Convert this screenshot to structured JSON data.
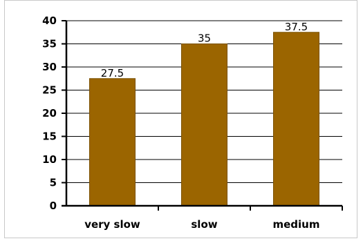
{
  "chart_data": {
    "type": "bar",
    "categories": [
      "very slow",
      "slow",
      "medium"
    ],
    "values": [
      27.5,
      35,
      37.5
    ],
    "data_labels": [
      "27.5",
      "35",
      "37.5"
    ],
    "ylim": [
      0,
      40
    ],
    "yticks": [
      0,
      5,
      10,
      15,
      20,
      25,
      30,
      35,
      40
    ],
    "ytick_labels": [
      "0",
      "5",
      "10",
      "15",
      "20",
      "25",
      "30",
      "35",
      "40"
    ],
    "grid": true,
    "legend": "none",
    "title": "",
    "xlabel": "",
    "ylabel": "",
    "colors": {
      "bar": "#9B6500",
      "bar_edge": "#7a5000",
      "grid": "#000000",
      "axis": "#000000"
    }
  }
}
